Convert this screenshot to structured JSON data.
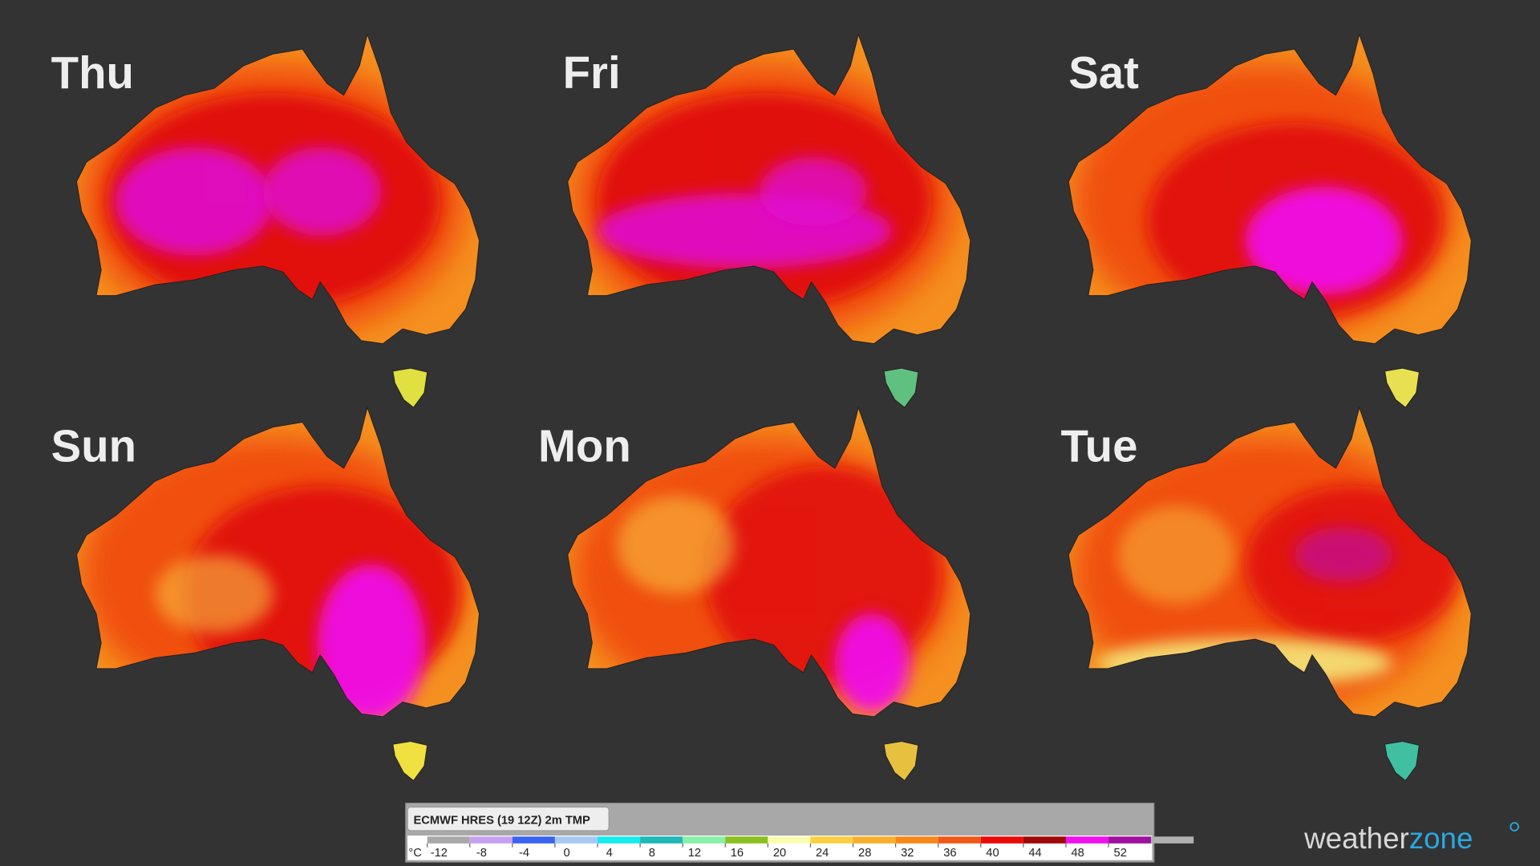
{
  "panels": [
    "Thu",
    "Fri",
    "Sat",
    "Sun",
    "Mon",
    "Tue"
  ],
  "legend": {
    "title": "ECMWF HRES (19 12Z) 2m TMP",
    "unit": "°C",
    "ticks": [
      -12,
      -8,
      -4,
      0,
      4,
      8,
      12,
      16,
      20,
      24,
      28,
      32,
      36,
      40,
      44,
      48,
      52
    ],
    "colors": [
      "#ffffff",
      "#a8a8a8",
      "#c8a0f0",
      "#3a64f0",
      "#a8c8f4",
      "#18ecec",
      "#20b8b8",
      "#88f0a8",
      "#88c020",
      "#fcfcb0",
      "#f8d040",
      "#f8b028",
      "#f88818",
      "#f05818",
      "#ea0a0a",
      "#a00808",
      "#f010f0",
      "#a010a0",
      "#b0b0b0"
    ]
  },
  "brand": [
    "weather",
    "zone"
  ]
}
